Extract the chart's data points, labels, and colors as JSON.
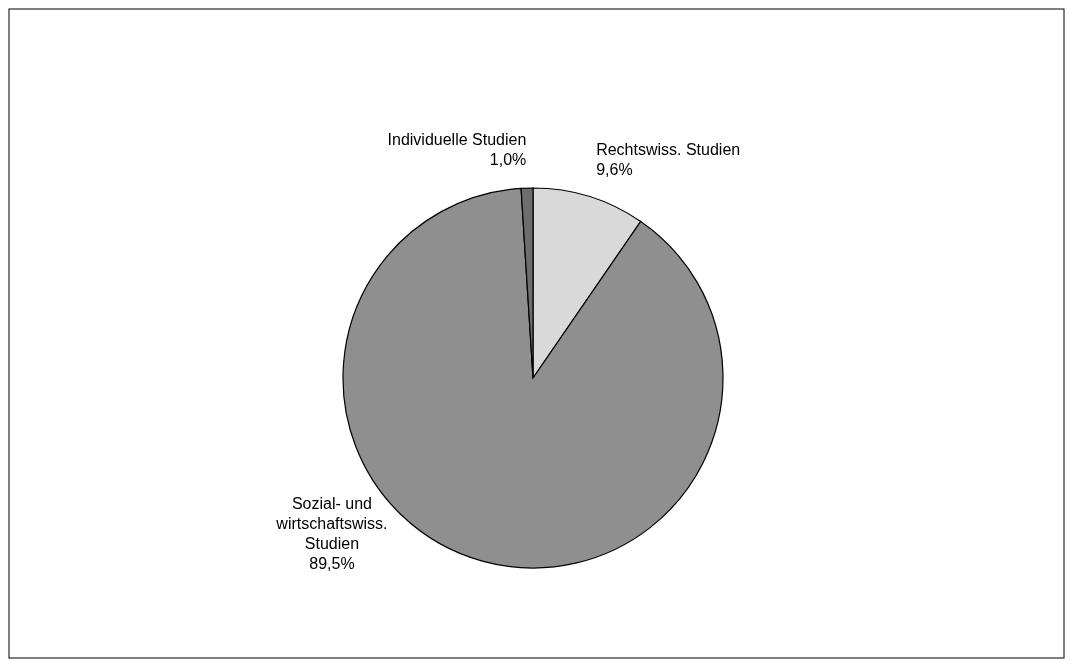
{
  "chart_data": {
    "type": "pie",
    "categories": [
      "Rechtswiss. Studien",
      "Sozial- und wirtschaftswiss. Studien",
      "Individuelle Studien"
    ],
    "values": [
      9.6,
      89.5,
      1.0
    ],
    "value_labels": [
      "9,6%",
      "89,5%",
      "1,0%"
    ],
    "colors": [
      "#d9d9d9",
      "#8f8f8f",
      "#6e6e6e"
    ]
  }
}
